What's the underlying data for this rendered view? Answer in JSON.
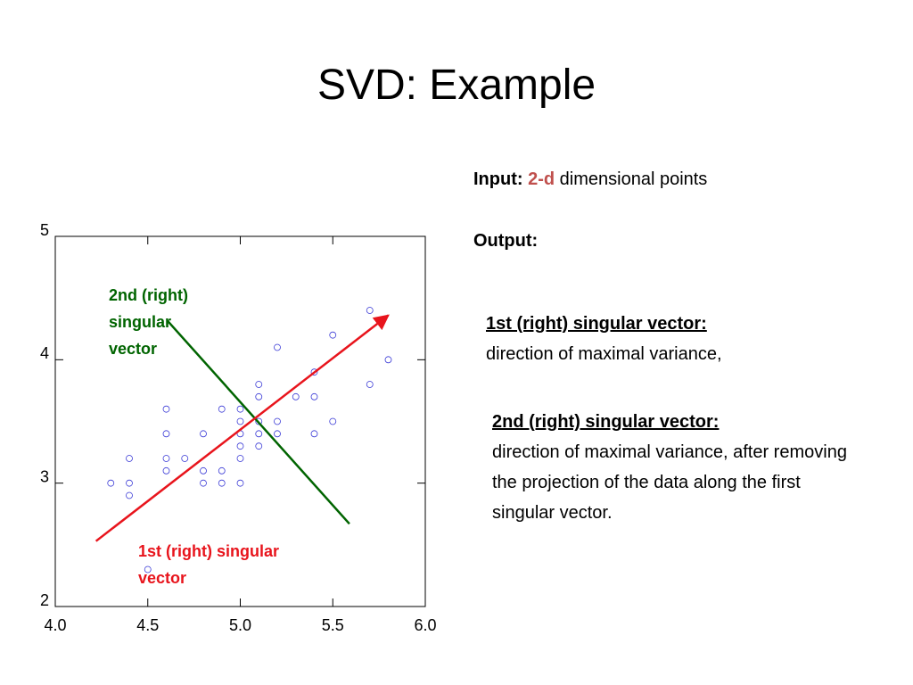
{
  "slide_title": "SVD: Example",
  "input": {
    "label": "Input:",
    "highlight": "2-d",
    "text": "dimensional points"
  },
  "output": {
    "label": "Output:"
  },
  "vector1": {
    "heading": "1st (right) singular vector:",
    "text": "direction of maximal variance,"
  },
  "vector2": {
    "heading": "2nd (right) singular vector:",
    "text": "direction of maximal variance, after removing the projection of the data along the first singular vector."
  },
  "chart_data": {
    "type": "scatter",
    "xlim": [
      4,
      6
    ],
    "ylim": [
      2,
      5
    ],
    "xticks": [
      {
        "value": 4,
        "label": "4.0"
      },
      {
        "value": 4.5,
        "label": "4.5"
      },
      {
        "value": 5,
        "label": "5.0"
      },
      {
        "value": 5.5,
        "label": "5.5"
      },
      {
        "value": 6,
        "label": "6.0"
      }
    ],
    "yticks": [
      2,
      3,
      4,
      5
    ],
    "series": [
      {
        "type": "scatter",
        "color": "#3a3ad6",
        "x": [
          4.3,
          4.4,
          4.4,
          4.4,
          4.6,
          4.6,
          4.6,
          4.6,
          4.7,
          4.8,
          4.8,
          4.8,
          4.9,
          4.9,
          4.9,
          5.0,
          5.0,
          5.0,
          5.0,
          5.0,
          5.0,
          5.1,
          5.1,
          5.1,
          5.1,
          5.1,
          5.2,
          5.2,
          5.2,
          5.3,
          5.4,
          5.4,
          5.4,
          5.5,
          5.5,
          5.7,
          5.7,
          5.8,
          4.5
        ],
        "values": [
          3.0,
          3.2,
          3.0,
          2.9,
          3.6,
          3.4,
          3.2,
          3.1,
          3.2,
          3.4,
          3.1,
          3.0,
          3.6,
          3.1,
          3.0,
          3.6,
          3.5,
          3.4,
          3.3,
          3.2,
          3.0,
          3.8,
          3.7,
          3.5,
          3.4,
          3.3,
          4.1,
          3.5,
          3.4,
          3.7,
          3.9,
          3.7,
          3.4,
          4.2,
          3.5,
          4.4,
          3.8,
          4.0,
          2.3
        ]
      },
      {
        "type": "line",
        "name": "2nd (right) singular vector",
        "color": "#006400",
        "arrow": false,
        "x": [
          4.61,
          5.59
        ],
        "values": [
          4.31,
          2.67
        ]
      },
      {
        "type": "line",
        "name": "1st (right) singular vector",
        "color": "#e8141c",
        "arrow": true,
        "x": [
          4.22,
          5.8
        ],
        "values": [
          2.53,
          4.36
        ]
      }
    ]
  }
}
